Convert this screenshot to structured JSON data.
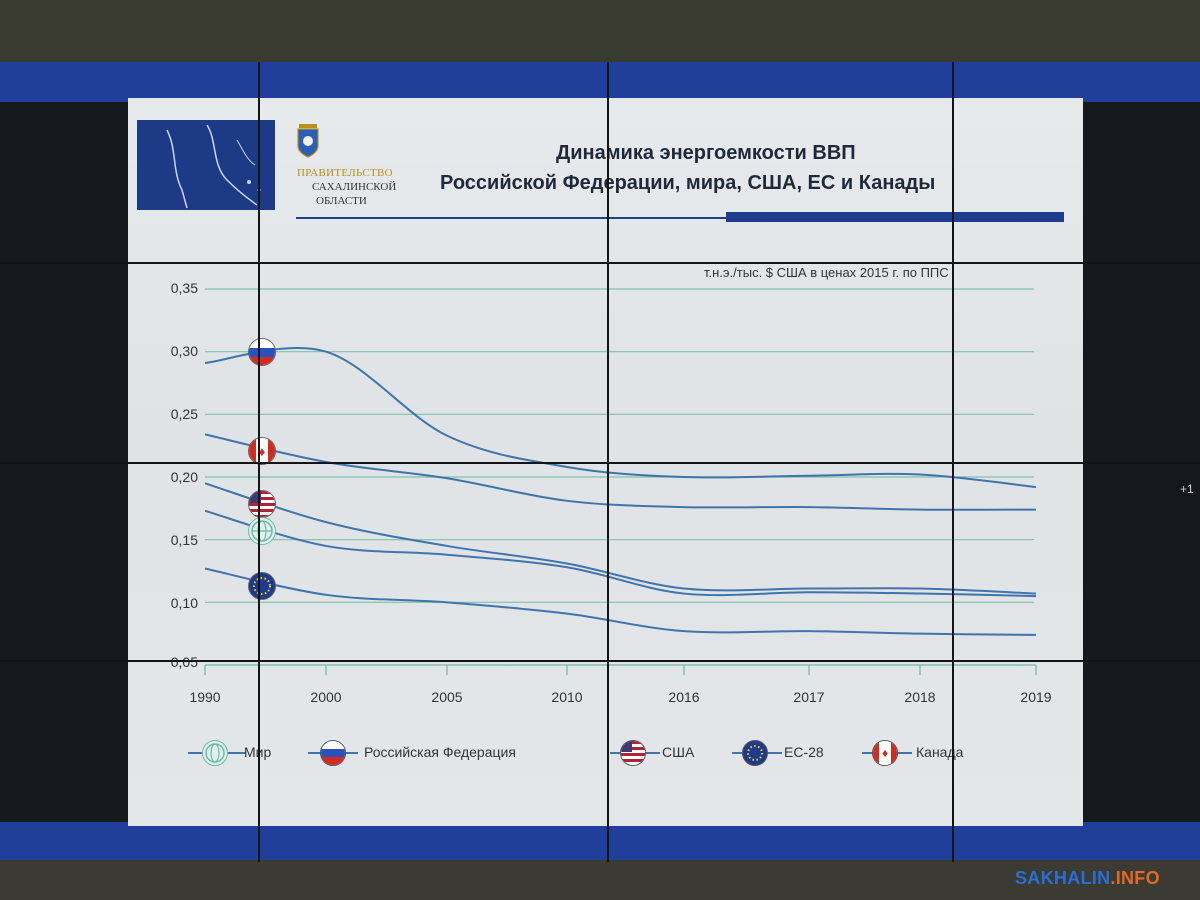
{
  "header": {
    "org_line1": "ПРАВИТЕЛЬСТВО",
    "org_line2": "САХАЛИНСКОЙ",
    "org_line3": "ОБЛАСТИ",
    "title_line1": "Динамика энергоемкости ВВП",
    "title_line2": "Российской Федерации, мира, США, ЕС и Канады"
  },
  "watermark": {
    "main": "SAKHALIN",
    "suffix": ".INFO"
  },
  "edge_text": "+1",
  "colors": {
    "line": "#3f74ad",
    "grid": "#7fc3a8",
    "accent_blue": "#1e3d8f"
  },
  "chart_data": {
    "type": "line",
    "title": "Динамика энергоемкости ВВП Российской Федерации, мира, США, ЕС и Канады",
    "units": "т.н.э./тыс. $ США в ценах 2015 г. по ППС",
    "categories": [
      "1990",
      "2000",
      "2005",
      "2010",
      "2016",
      "2017",
      "2018",
      "2019"
    ],
    "y_ticks": [
      "0,35",
      "0,30",
      "0,25",
      "0,20",
      "0,15",
      "0,10",
      "0,05"
    ],
    "ylim": [
      0.05,
      0.35
    ],
    "grid": true,
    "legend_position": "bottom",
    "series": [
      {
        "name": "Мир",
        "icon": "globe-icon",
        "values": [
          0.173,
          0.145,
          0.138,
          0.128,
          0.107,
          0.108,
          0.107,
          0.105
        ]
      },
      {
        "name": "Российская Федерация",
        "icon": "russia-flag-icon",
        "values": [
          0.291,
          0.3,
          0.233,
          0.208,
          0.2,
          0.201,
          0.202,
          0.192
        ]
      },
      {
        "name": "США",
        "icon": "usa-flag-icon",
        "values": [
          0.195,
          0.164,
          0.145,
          0.131,
          0.111,
          0.111,
          0.111,
          0.107
        ]
      },
      {
        "name": "ЕС-28",
        "icon": "eu-flag-icon",
        "values": [
          0.127,
          0.106,
          0.1,
          0.091,
          0.077,
          0.077,
          0.075,
          0.074
        ]
      },
      {
        "name": "Канада",
        "icon": "canada-flag-icon",
        "values": [
          0.234,
          0.212,
          0.199,
          0.181,
          0.176,
          0.176,
          0.174,
          0.174
        ]
      }
    ]
  }
}
